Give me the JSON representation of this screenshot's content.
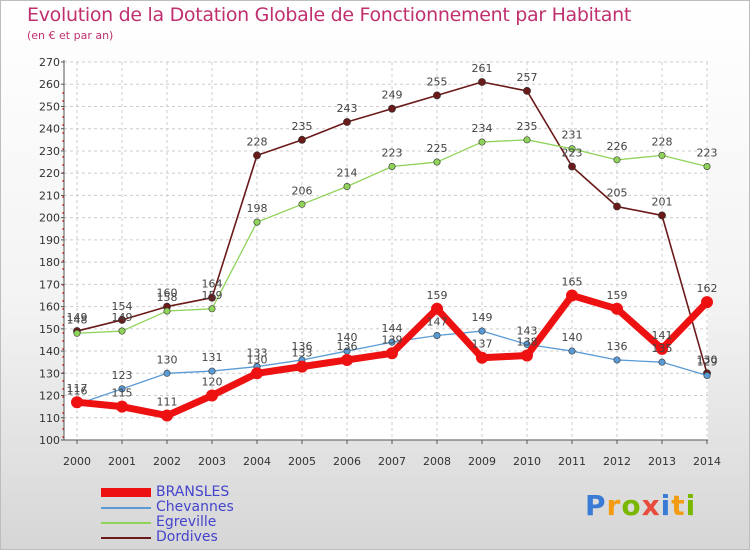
{
  "title": "Evolution de la Dotation Globale de Fonctionnement par Habitant",
  "subtitle": "(en € et par an)",
  "logo_text": "Proxiti",
  "logo_colors": [
    "#3a7bd5",
    "#f39c12",
    "#7ab800",
    "#e74c3c",
    "#3a7bd5",
    "#f39c12",
    "#7ab800"
  ],
  "chart_data": {
    "type": "line",
    "x": [
      "2000",
      "2001",
      "2002",
      "2003",
      "2004",
      "2005",
      "2006",
      "2007",
      "2008",
      "2009",
      "2010",
      "2011",
      "2012",
      "2013",
      "2014"
    ],
    "ylim": [
      100,
      270
    ],
    "yticks": [
      100,
      110,
      120,
      130,
      140,
      150,
      160,
      170,
      180,
      190,
      200,
      210,
      220,
      230,
      240,
      250,
      260,
      270
    ],
    "grid": true,
    "legend_position": "bottom-left",
    "series": [
      {
        "name": "Dordives",
        "color": "#6b1a1a",
        "values": [
          149,
          154,
          160,
          164,
          228,
          235,
          243,
          249,
          255,
          261,
          257,
          223,
          205,
          201,
          130
        ]
      },
      {
        "name": "Egreville",
        "color": "#8fd35a",
        "values": [
          148,
          149,
          158,
          159,
          198,
          206,
          214,
          223,
          225,
          234,
          235,
          231,
          226,
          228,
          223
        ]
      },
      {
        "name": "Chevannes",
        "color": "#5b9bd5",
        "values": [
          116,
          123,
          130,
          131,
          133,
          136,
          140,
          144,
          147,
          149,
          143,
          140,
          136,
          135,
          129
        ]
      },
      {
        "name": "BRANSLES",
        "color": "#ee1111",
        "values": [
          117,
          115,
          111,
          120,
          130,
          133,
          136,
          139,
          159,
          137,
          138,
          165,
          159,
          141,
          162
        ]
      }
    ]
  },
  "legend": [
    {
      "name": "BRANSLES",
      "color": "#ee1111",
      "thickness": 9
    },
    {
      "name": "Chevannes",
      "color": "#5b9bd5",
      "thickness": 2
    },
    {
      "name": "Egreville",
      "color": "#8fd35a",
      "thickness": 2
    },
    {
      "name": "Dordives",
      "color": "#6b1a1a",
      "thickness": 2
    }
  ]
}
